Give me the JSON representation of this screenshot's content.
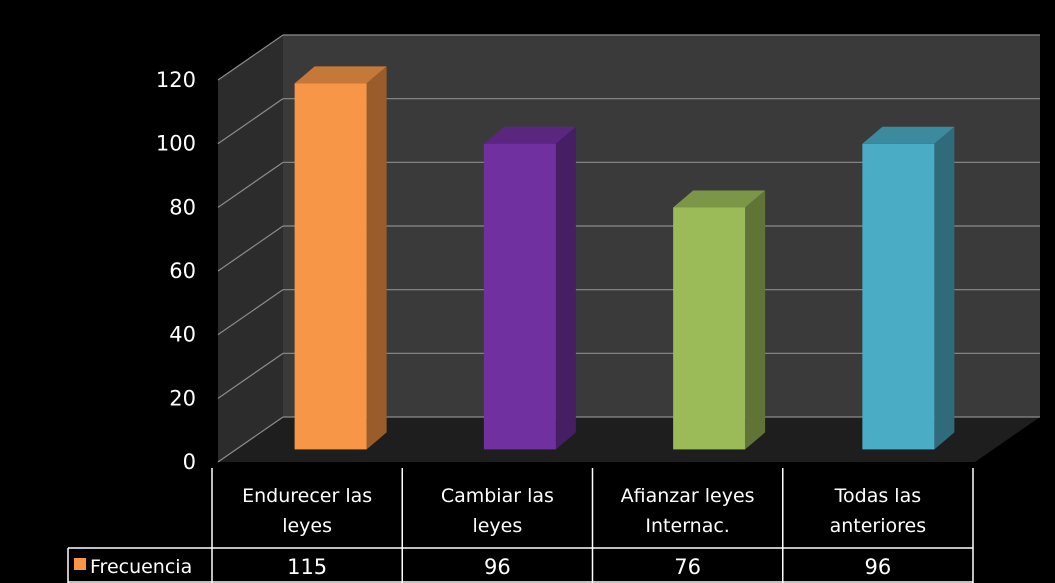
{
  "chart_data": {
    "type": "bar",
    "style": "3d-column-with-data-table",
    "categories": [
      [
        "Endurecer las",
        "leyes"
      ],
      [
        "Cambiar las",
        "leyes"
      ],
      [
        "Afianzar leyes",
        "Internac."
      ],
      [
        "Todas las",
        "anteriores"
      ]
    ],
    "series": [
      {
        "name": "Frecuencia",
        "values": [
          115,
          96,
          76,
          96
        ],
        "value_labels": [
          "115",
          "96",
          "76",
          "96"
        ],
        "colors": [
          "#F79646",
          "#7030A0",
          "#9BBB59",
          "#4BACC6"
        ]
      }
    ],
    "ylim": [
      0,
      120
    ],
    "yticks": [
      0,
      20,
      40,
      60,
      80,
      100,
      120
    ],
    "ytick_labels": [
      "0",
      "20",
      "40",
      "60",
      "80",
      "100",
      "120"
    ],
    "grid": true,
    "legend": "data-table-left",
    "legend_marker_color": "#F79646",
    "background": "#000000",
    "wall_color": "#3a3a3a",
    "gridline_color": "#8c8c8c"
  }
}
